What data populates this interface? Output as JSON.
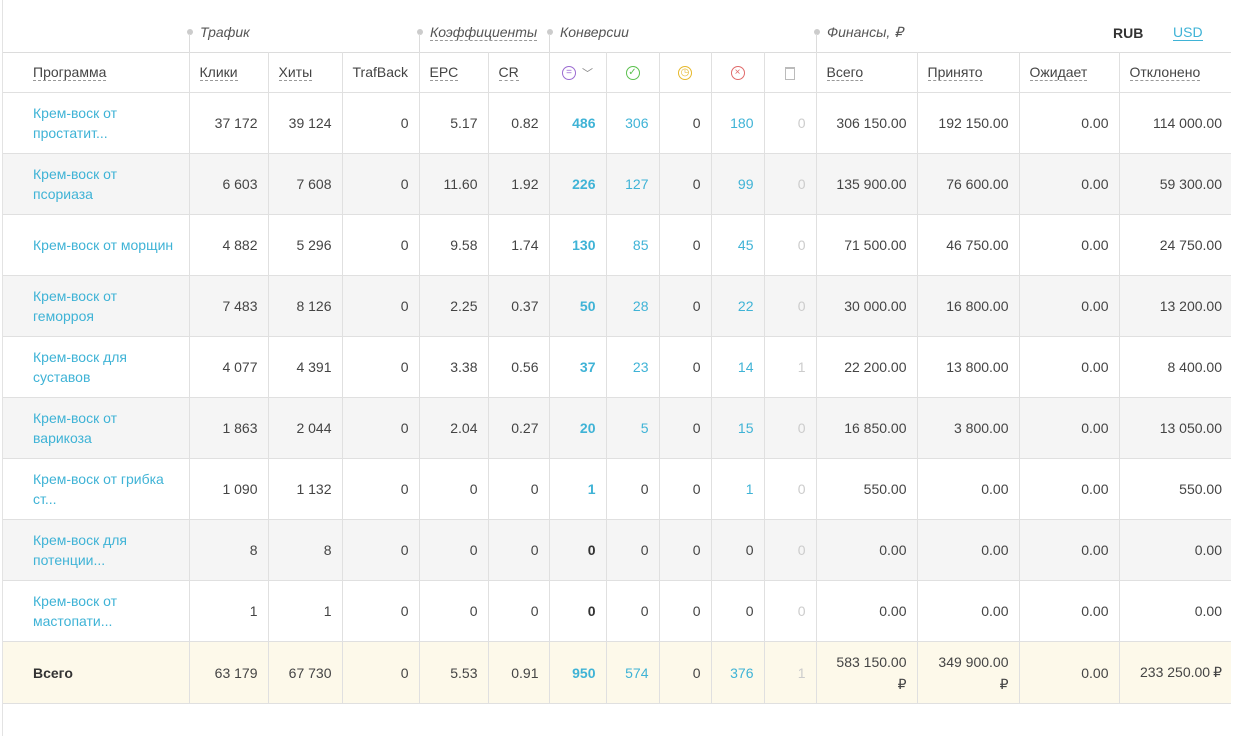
{
  "groups": {
    "traffic": "Трафик",
    "coeffs": "Коэффициенты",
    "conversions": "Конверсии",
    "finance": "Финансы, ₽"
  },
  "currency": {
    "rub": "RUB",
    "usd": "USD"
  },
  "columns": {
    "program": "Программа",
    "clicks": "Клики",
    "hits": "Хиты",
    "trafback": "TrafBack",
    "epc": "EPC",
    "cr": "CR",
    "total": "Всего",
    "accepted": "Принято",
    "pending": "Ожидает",
    "rejected": "Отклонено"
  },
  "icons": {
    "all": "list-circle-icon",
    "approved": "check-circle-icon",
    "hold": "clock-circle-icon",
    "declined": "x-circle-icon",
    "trash": "trash-icon",
    "chevron": "chevron-down-icon"
  },
  "rows": [
    {
      "p1": "Крем-воск от",
      "p2": "простатит...",
      "clicks": "37 172",
      "hits": "39 124",
      "tb": "0",
      "epc": "5.17",
      "cr": "0.82",
      "all": "486",
      "ok": "306",
      "wait": "0",
      "no": "180",
      "del": "0",
      "sum": "306 150.00",
      "acc": "192 150.00",
      "pend": "0.00",
      "rej": "114 000.00"
    },
    {
      "p1": "Крем-воск от",
      "p2": "псориаза",
      "clicks": "6 603",
      "hits": "7 608",
      "tb": "0",
      "epc": "11.60",
      "cr": "1.92",
      "all": "226",
      "ok": "127",
      "wait": "0",
      "no": "99",
      "del": "0",
      "sum": "135 900.00",
      "acc": "76 600.00",
      "pend": "0.00",
      "rej": "59 300.00"
    },
    {
      "p1": "Крем-воск от морщин",
      "p2": "",
      "clicks": "4 882",
      "hits": "5 296",
      "tb": "0",
      "epc": "9.58",
      "cr": "1.74",
      "all": "130",
      "ok": "85",
      "wait": "0",
      "no": "45",
      "del": "0",
      "sum": "71 500.00",
      "acc": "46 750.00",
      "pend": "0.00",
      "rej": "24 750.00"
    },
    {
      "p1": "Крем-воск от",
      "p2": "геморроя",
      "clicks": "7 483",
      "hits": "8 126",
      "tb": "0",
      "epc": "2.25",
      "cr": "0.37",
      "all": "50",
      "ok": "28",
      "wait": "0",
      "no": "22",
      "del": "0",
      "sum": "30 000.00",
      "acc": "16 800.00",
      "pend": "0.00",
      "rej": "13 200.00"
    },
    {
      "p1": "Крем-воск для",
      "p2": "суставов",
      "clicks": "4 077",
      "hits": "4 391",
      "tb": "0",
      "epc": "3.38",
      "cr": "0.56",
      "all": "37",
      "ok": "23",
      "wait": "0",
      "no": "14",
      "del": "1",
      "sum": "22 200.00",
      "acc": "13 800.00",
      "pend": "0.00",
      "rej": "8 400.00"
    },
    {
      "p1": "Крем-воск от",
      "p2": "варикоза",
      "clicks": "1 863",
      "hits": "2 044",
      "tb": "0",
      "epc": "2.04",
      "cr": "0.27",
      "all": "20",
      "ok": "5",
      "wait": "0",
      "no": "15",
      "del": "0",
      "sum": "16 850.00",
      "acc": "3 800.00",
      "pend": "0.00",
      "rej": "13 050.00"
    },
    {
      "p1": "Крем-воск от грибка",
      "p2": "ст...",
      "clicks": "1 090",
      "hits": "1 132",
      "tb": "0",
      "epc": "0",
      "cr": "0",
      "all": "1",
      "ok": "0",
      "wait": "0",
      "no": "1",
      "del": "0",
      "sum": "550.00",
      "acc": "0.00",
      "pend": "0.00",
      "rej": "550.00"
    },
    {
      "p1": "Крем-воск для",
      "p2": "потенции...",
      "clicks": "8",
      "hits": "8",
      "tb": "0",
      "epc": "0",
      "cr": "0",
      "all": "0",
      "ok": "0",
      "wait": "0",
      "no": "0",
      "del": "0",
      "sum": "0.00",
      "acc": "0.00",
      "pend": "0.00",
      "rej": "0.00"
    },
    {
      "p1": "Крем-воск от",
      "p2": "мастопати...",
      "clicks": "1",
      "hits": "1",
      "tb": "0",
      "epc": "0",
      "cr": "0",
      "all": "0",
      "ok": "0",
      "wait": "0",
      "no": "0",
      "del": "0",
      "sum": "0.00",
      "acc": "0.00",
      "pend": "0.00",
      "rej": "0.00"
    }
  ],
  "total": {
    "label": "Всего",
    "clicks": "63 179",
    "hits": "67 730",
    "tb": "0",
    "epc": "5.53",
    "cr": "0.91",
    "all": "950",
    "ok": "574",
    "wait": "0",
    "no": "376",
    "del": "1",
    "sum": "583 150.00",
    "acc": "349 900.00",
    "pend": "0.00",
    "rej": "233 250.00",
    "rub": "₽"
  },
  "colors": {
    "link": "#3fb3d6",
    "total_bg": "#fdf9ea",
    "stripe": "#f5f5f5"
  }
}
